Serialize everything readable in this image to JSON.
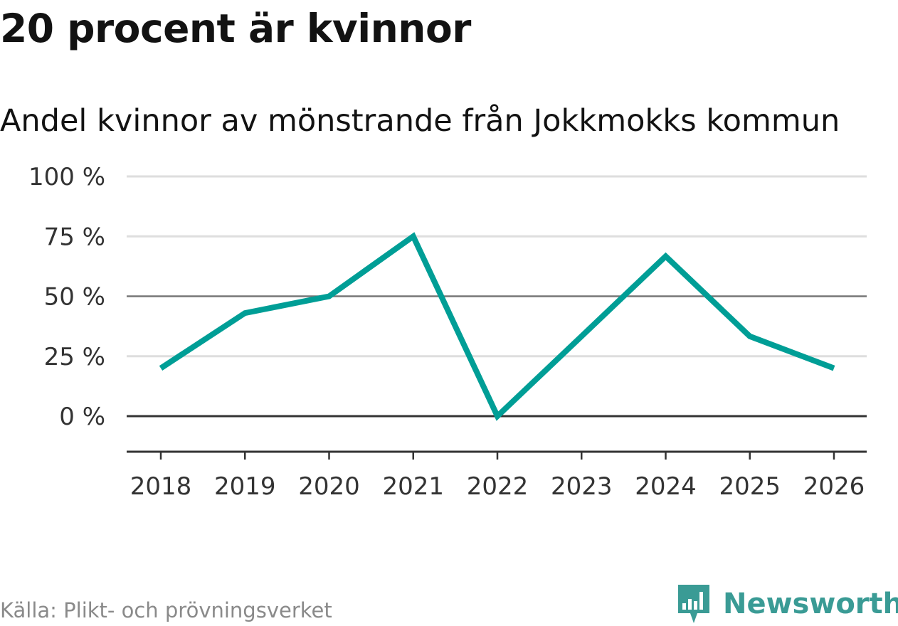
{
  "title": "20 procent är kvinnor",
  "subtitle": "Andel kvinnor av mönstrande från Jokkmokks kommun",
  "source": "Källa: Plikt- och prövningsverket",
  "brand": {
    "name": "Newsworthy",
    "color": "#3a9b95",
    "icon": "newsworthy-logo-icon"
  },
  "colors": {
    "line": "#009e96",
    "grid": "#dedede",
    "axis": "#333333"
  },
  "chart_data": {
    "type": "line",
    "title": "20 procent är kvinnor",
    "subtitle": "Andel kvinnor av mönstrande från Jokkmokks kommun",
    "xlabel": "",
    "ylabel": "",
    "categories": [
      "2018",
      "2019",
      "2020",
      "2021",
      "2022",
      "2023",
      "2024",
      "2025",
      "2026"
    ],
    "series": [
      {
        "name": "Andel kvinnor",
        "values": [
          20,
          43,
          50,
          75,
          0,
          33.3,
          66.7,
          33.3,
          20
        ]
      }
    ],
    "ylim": [
      -15,
      100
    ],
    "yticks": [
      0,
      25,
      50,
      75,
      100
    ],
    "ytick_labels": [
      "0 %",
      "25 %",
      "50 %",
      "75 %",
      "100 %"
    ],
    "grid": true,
    "legend": "none"
  }
}
